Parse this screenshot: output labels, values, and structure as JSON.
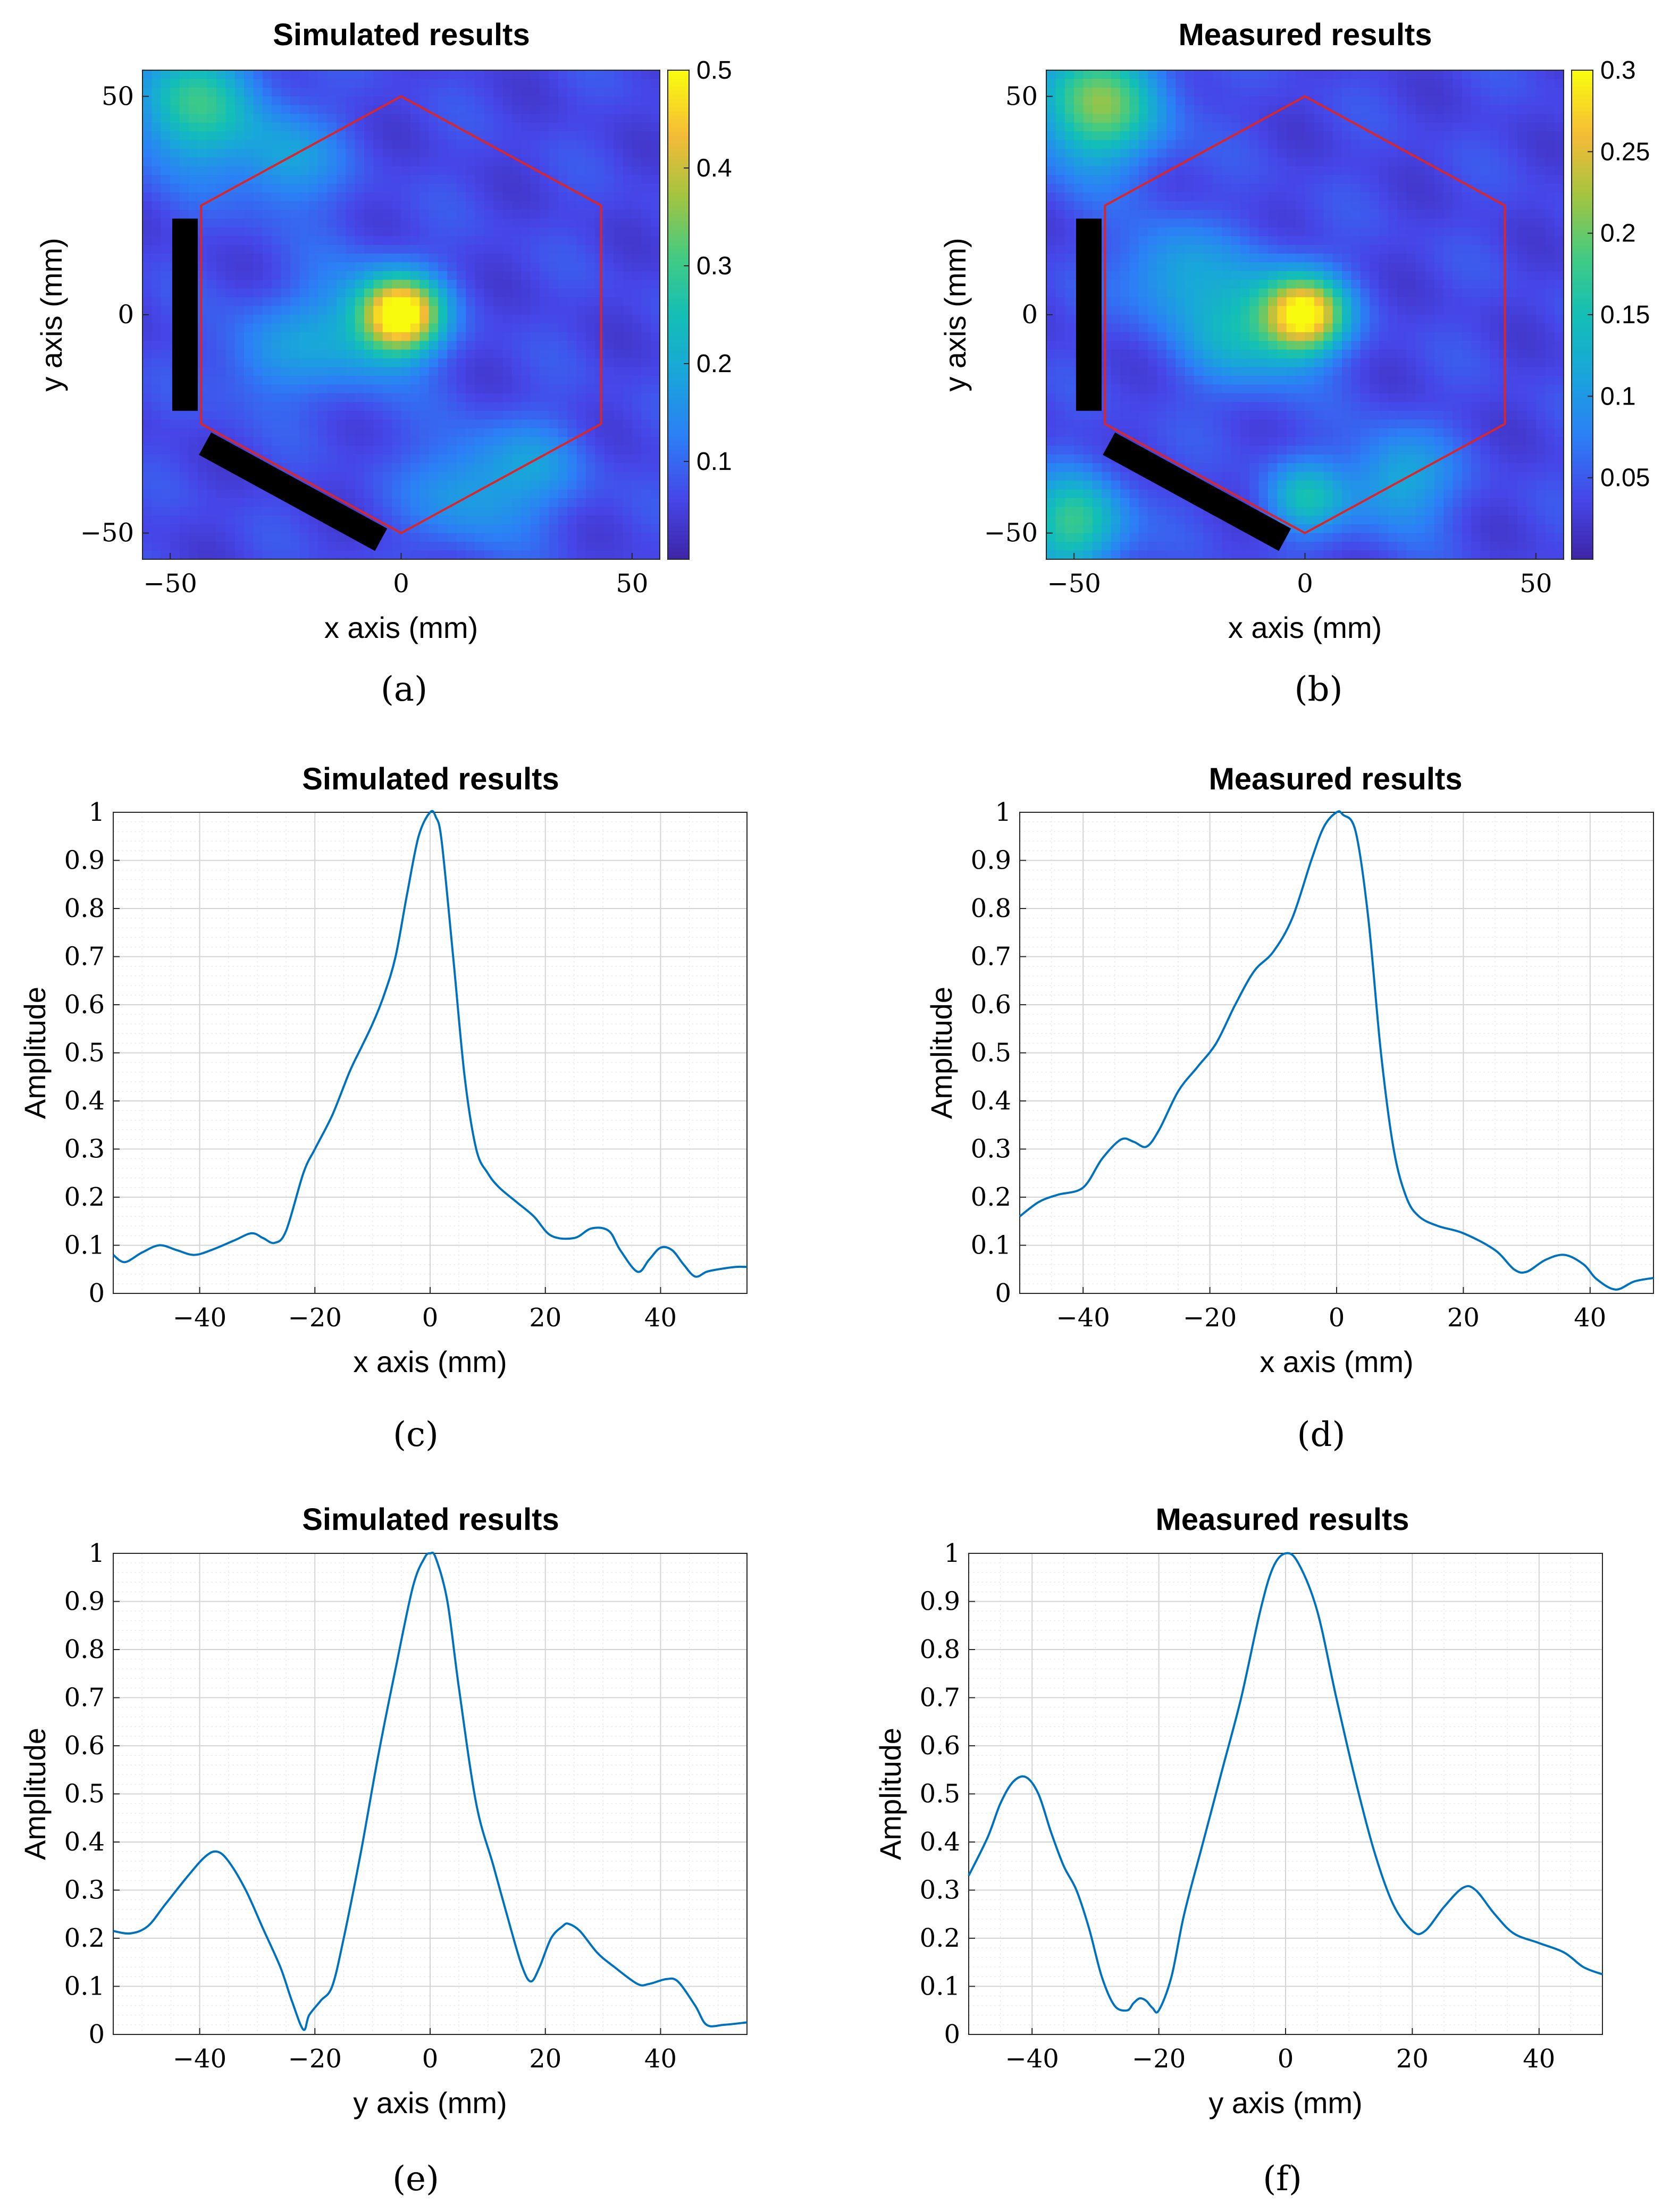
{
  "colors": {
    "line": "#0072BD",
    "hexagon": "#D9262A",
    "bar": "#000000",
    "grid": "#d4d4d4",
    "minor_grid": "#ececec"
  },
  "chart_data": [
    {
      "id": "a",
      "type": "heatmap",
      "panel_label": "(a)",
      "title": "Simulated results",
      "xlabel": "x axis (mm)",
      "ylabel": "y axis (mm)",
      "xlim": [
        -56,
        56
      ],
      "ylim": [
        -56,
        56
      ],
      "xticks": [
        -50,
        0,
        50
      ],
      "xtick_labels": [
        "−50",
        "0",
        "50"
      ],
      "yticks": [
        -50,
        0,
        50
      ],
      "ytick_labels": [
        "−50",
        "0",
        "50"
      ],
      "colorbar": {
        "range": [
          0,
          0.5
        ],
        "ticks": [
          0.1,
          0.2,
          0.3,
          0.4,
          0.5
        ],
        "tick_labels": [
          "0.1",
          "0.2",
          "0.3",
          "0.4",
          "0.5"
        ]
      },
      "hexagon_vertices": [
        [
          0,
          50
        ],
        [
          43.3,
          25
        ],
        [
          43.3,
          -25
        ],
        [
          0,
          -50
        ],
        [
          -43.3,
          -25
        ],
        [
          -43.3,
          25
        ]
      ],
      "blocked_edges": [
        [
          [
            -43.3,
            25
          ],
          [
            -43.3,
            -25
          ]
        ],
        [
          [
            -43.3,
            -25
          ],
          [
            0,
            -50
          ]
        ]
      ],
      "features": [
        {
          "x": 0,
          "y": 0,
          "sigma": 6,
          "amp": 0.45
        },
        {
          "x": -10,
          "y": -3,
          "sigma": 10,
          "amp": 0.13
        },
        {
          "x": -45,
          "y": 48,
          "sigma": 10,
          "amp": 0.22
        },
        {
          "x": -25,
          "y": 35,
          "sigma": 8,
          "amp": 0.12
        },
        {
          "x": 15,
          "y": -40,
          "sigma": 9,
          "amp": 0.12
        },
        {
          "x": 30,
          "y": -35,
          "sigma": 8,
          "amp": 0.08
        },
        {
          "x": -30,
          "y": -10,
          "sigma": 8,
          "amp": 0.08
        }
      ]
    },
    {
      "id": "b",
      "type": "heatmap",
      "panel_label": "(b)",
      "title": "Measured results",
      "xlabel": "x axis (mm)",
      "ylabel": "y axis (mm)",
      "xlim": [
        -56,
        56
      ],
      "ylim": [
        -56,
        56
      ],
      "xticks": [
        -50,
        0,
        50
      ],
      "xtick_labels": [
        "−50",
        "0",
        "50"
      ],
      "yticks": [
        -50,
        0,
        50
      ],
      "ytick_labels": [
        "−50",
        "0",
        "50"
      ],
      "colorbar": {
        "range": [
          0,
          0.3
        ],
        "ticks": [
          0.05,
          0.1,
          0.15,
          0.2,
          0.25,
          0.3
        ],
        "tick_labels": [
          "0.05",
          "0.1",
          "0.15",
          "0.2",
          "0.25",
          "0.3"
        ]
      },
      "hexagon_vertices": [
        [
          0,
          50
        ],
        [
          43.3,
          25
        ],
        [
          43.3,
          -25
        ],
        [
          0,
          -50
        ],
        [
          -43.3,
          -25
        ],
        [
          -43.3,
          25
        ]
      ],
      "blocked_edges": [
        [
          [
            -43.3,
            25
          ],
          [
            -43.3,
            -25
          ]
        ],
        [
          [
            -43.3,
            -25
          ],
          [
            0,
            -50
          ]
        ]
      ],
      "features": [
        {
          "x": 0,
          "y": 0,
          "sigma": 6,
          "amp": 0.24
        },
        {
          "x": -12,
          "y": -2,
          "sigma": 10,
          "amp": 0.11
        },
        {
          "x": -45,
          "y": 48,
          "sigma": 10,
          "amp": 0.17
        },
        {
          "x": -50,
          "y": -48,
          "sigma": 8,
          "amp": 0.14
        },
        {
          "x": 0,
          "y": -42,
          "sigma": 6,
          "amp": 0.1
        },
        {
          "x": 20,
          "y": -38,
          "sigma": 8,
          "amp": 0.09
        },
        {
          "x": -30,
          "y": 10,
          "sigma": 8,
          "amp": 0.07
        }
      ]
    },
    {
      "id": "c",
      "type": "line",
      "panel_label": "(c)",
      "title": "Simulated results",
      "xlabel": "x axis (mm)",
      "ylabel": "Amplitude",
      "xlim": [
        -55,
        55
      ],
      "ylim": [
        0,
        1
      ],
      "xticks": [
        -40,
        -20,
        0,
        20,
        40
      ],
      "xtick_labels": [
        "−40",
        "−20",
        "0",
        "20",
        "40"
      ],
      "yticks": [
        0,
        0.1,
        0.2,
        0.3,
        0.4,
        0.5,
        0.6,
        0.7,
        0.8,
        0.9,
        1
      ],
      "ytick_labels": [
        "0",
        "0.1",
        "0.2",
        "0.3",
        "0.4",
        "0.5",
        "0.6",
        "0.7",
        "0.8",
        "0.9",
        "1"
      ],
      "x": [
        -55,
        -53,
        -50,
        -47,
        -44,
        -41,
        -38,
        -34,
        -31,
        -29,
        -27,
        -25,
        -22,
        -20,
        -17,
        -14,
        -12,
        -10,
        -8,
        -6,
        -4,
        -2,
        0,
        1,
        2,
        4,
        6,
        8,
        10,
        12,
        15,
        18,
        21,
        25,
        28,
        31,
        33,
        36,
        38,
        40,
        42,
        44,
        46,
        48,
        50,
        53,
        55
      ],
      "y": [
        0.08,
        0.065,
        0.085,
        0.1,
        0.09,
        0.08,
        0.09,
        0.11,
        0.125,
        0.115,
        0.105,
        0.13,
        0.25,
        0.3,
        0.37,
        0.46,
        0.51,
        0.56,
        0.62,
        0.7,
        0.83,
        0.95,
        1.0,
        0.99,
        0.94,
        0.7,
        0.45,
        0.3,
        0.25,
        0.22,
        0.19,
        0.16,
        0.12,
        0.115,
        0.135,
        0.13,
        0.09,
        0.045,
        0.07,
        0.095,
        0.09,
        0.06,
        0.035,
        0.045,
        0.05,
        0.055,
        0.055
      ]
    },
    {
      "id": "d",
      "type": "line",
      "panel_label": "(d)",
      "title": "Measured results",
      "xlabel": "x axis (mm)",
      "ylabel": "Amplitude",
      "xlim": [
        -50,
        50
      ],
      "ylim": [
        0,
        1
      ],
      "xticks": [
        -40,
        -20,
        0,
        20,
        40
      ],
      "xtick_labels": [
        "−40",
        "−20",
        "0",
        "20",
        "40"
      ],
      "yticks": [
        0,
        0.1,
        0.2,
        0.3,
        0.4,
        0.5,
        0.6,
        0.7,
        0.8,
        0.9,
        1
      ],
      "ytick_labels": [
        "0",
        "0.1",
        "0.2",
        "0.3",
        "0.4",
        "0.5",
        "0.6",
        "0.7",
        "0.8",
        "0.9",
        "1"
      ],
      "x": [
        -50,
        -47,
        -44,
        -40,
        -37,
        -34,
        -32,
        -30,
        -28,
        -25,
        -22,
        -19,
        -16,
        -13,
        -10,
        -7,
        -4,
        -2,
        0,
        1,
        3,
        5,
        7,
        9,
        11,
        13,
        16,
        20,
        25,
        28,
        30,
        33,
        36,
        39,
        41,
        44,
        47,
        50
      ],
      "y": [
        0.16,
        0.19,
        0.205,
        0.22,
        0.28,
        0.32,
        0.315,
        0.305,
        0.34,
        0.42,
        0.47,
        0.52,
        0.6,
        0.67,
        0.71,
        0.78,
        0.9,
        0.97,
        1.0,
        0.995,
        0.96,
        0.78,
        0.5,
        0.3,
        0.2,
        0.16,
        0.14,
        0.125,
        0.09,
        0.05,
        0.045,
        0.07,
        0.08,
        0.06,
        0.03,
        0.008,
        0.025,
        0.032
      ]
    },
    {
      "id": "e",
      "type": "line",
      "panel_label": "(e)",
      "title": "Simulated results",
      "xlabel": "y axis (mm)",
      "ylabel": "Amplitude",
      "xlim": [
        -55,
        55
      ],
      "ylim": [
        0,
        1
      ],
      "xticks": [
        -40,
        -20,
        0,
        20,
        40
      ],
      "xtick_labels": [
        "−40",
        "−20",
        "0",
        "20",
        "40"
      ],
      "yticks": [
        0,
        0.1,
        0.2,
        0.3,
        0.4,
        0.5,
        0.6,
        0.7,
        0.8,
        0.9,
        1
      ],
      "ytick_labels": [
        "0",
        "0.1",
        "0.2",
        "0.3",
        "0.4",
        "0.5",
        "0.6",
        "0.7",
        "0.8",
        "0.9",
        "1"
      ],
      "x": [
        -55,
        -52,
        -49,
        -46,
        -42,
        -39,
        -37,
        -35,
        -32,
        -29,
        -26,
        -24,
        -22,
        -21,
        -19,
        -17,
        -15,
        -12,
        -9,
        -6,
        -3,
        -1,
        0,
        1,
        3,
        5,
        8,
        11,
        14,
        16,
        17.5,
        19,
        21,
        23,
        24,
        26,
        29,
        32,
        36,
        38,
        41,
        43,
        46,
        48,
        51,
        55
      ],
      "y": [
        0.215,
        0.21,
        0.225,
        0.27,
        0.33,
        0.37,
        0.38,
        0.36,
        0.3,
        0.22,
        0.14,
        0.07,
        0.01,
        0.04,
        0.07,
        0.1,
        0.2,
        0.38,
        0.58,
        0.76,
        0.93,
        0.99,
        1.0,
        0.99,
        0.9,
        0.72,
        0.48,
        0.35,
        0.22,
        0.14,
        0.11,
        0.14,
        0.2,
        0.225,
        0.23,
        0.215,
        0.17,
        0.14,
        0.105,
        0.105,
        0.115,
        0.11,
        0.06,
        0.02,
        0.02,
        0.025
      ]
    },
    {
      "id": "f",
      "type": "line",
      "panel_label": "(f)",
      "title": "Measured results",
      "xlabel": "y axis (mm)",
      "ylabel": "Amplitude",
      "xlim": [
        -50,
        50
      ],
      "ylim": [
        0,
        1
      ],
      "xticks": [
        -40,
        -20,
        0,
        20,
        40
      ],
      "xtick_labels": [
        "−40",
        "−20",
        "0",
        "20",
        "40"
      ],
      "yticks": [
        0,
        0.1,
        0.2,
        0.3,
        0.4,
        0.5,
        0.6,
        0.7,
        0.8,
        0.9,
        1
      ],
      "ytick_labels": [
        "0",
        "0.1",
        "0.2",
        "0.3",
        "0.4",
        "0.5",
        "0.6",
        "0.7",
        "0.8",
        "0.9",
        "1"
      ],
      "x": [
        -50,
        -47,
        -45,
        -43,
        -41,
        -39,
        -37,
        -35,
        -33,
        -31,
        -29,
        -27,
        -25,
        -24,
        -23,
        -22,
        -21,
        -20,
        -18,
        -16,
        -13,
        -10,
        -7,
        -4,
        -2,
        0,
        2,
        5,
        8,
        11,
        14,
        17,
        20,
        22,
        25,
        28,
        30,
        33,
        36,
        40,
        44,
        47,
        50
      ],
      "y": [
        0.33,
        0.41,
        0.48,
        0.525,
        0.535,
        0.5,
        0.42,
        0.35,
        0.3,
        0.22,
        0.12,
        0.06,
        0.05,
        0.065,
        0.075,
        0.07,
        0.055,
        0.05,
        0.12,
        0.25,
        0.4,
        0.55,
        0.7,
        0.88,
        0.97,
        1.0,
        0.98,
        0.88,
        0.7,
        0.53,
        0.38,
        0.27,
        0.215,
        0.215,
        0.265,
        0.305,
        0.3,
        0.25,
        0.21,
        0.19,
        0.17,
        0.14,
        0.125
      ]
    }
  ]
}
